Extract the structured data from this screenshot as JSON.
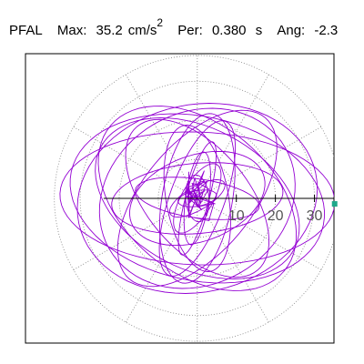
{
  "header": {
    "station": "PFAL",
    "max_label": "Max:",
    "max_value": "35.2",
    "max_unit": "cm/s",
    "max_unit_exp": "2",
    "per_label": "Per:",
    "per_value": "0.380",
    "per_unit": "s",
    "ang_label": "Ang:",
    "ang_value": "-2.3"
  },
  "colors": {
    "trace": "#9400d3",
    "marker": "#1fa88a",
    "frame": "#000000",
    "grid": "#808080"
  },
  "chart_data": {
    "type": "scatter",
    "title": "",
    "xlabel": "",
    "ylabel": "",
    "xlim": [
      -44,
      35
    ],
    "ylim": [
      -37,
      37
    ],
    "rings": [
      10,
      20,
      30
    ],
    "ring_labels": [
      "10",
      "20",
      "30"
    ],
    "grid_style": "dotted",
    "max_radius": 35.2,
    "angle_deg": -2.3,
    "orbits": [
      {
        "a": 35.2,
        "b": 17.0,
        "rot": -2
      },
      {
        "a": 33.0,
        "b": 21.0,
        "rot": -12
      },
      {
        "a": 31.0,
        "b": 24.0,
        "rot": 12
      },
      {
        "a": 28.0,
        "b": 18.0,
        "rot": -28
      },
      {
        "a": 26.0,
        "b": 22.0,
        "rot": 30
      },
      {
        "a": 27.0,
        "b": 14.0,
        "rot": 50
      },
      {
        "a": 24.0,
        "b": 13.0,
        "rot": -50
      },
      {
        "a": 22.0,
        "b": 9.0,
        "rot": 80
      },
      {
        "a": 21.0,
        "b": 7.0,
        "rot": 70
      },
      {
        "a": 19.0,
        "b": 8.0,
        "rot": 100
      },
      {
        "a": 22.0,
        "b": 9.0,
        "rot": 5
      },
      {
        "a": 16.0,
        "b": 5.0,
        "rot": -8
      },
      {
        "a": 18.0,
        "b": 11.0,
        "rot": 20
      },
      {
        "a": 15.0,
        "b": 3.0,
        "rot": 75
      },
      {
        "a": 12.0,
        "b": 3.0,
        "rot": 82
      },
      {
        "a": 10.0,
        "b": 4.0,
        "rot": 60
      },
      {
        "a": 8.0,
        "b": 3.0,
        "rot": 30
      },
      {
        "a": 6.0,
        "b": 3.0,
        "rot": 95
      },
      {
        "a": 5.0,
        "b": 2.0,
        "rot": 10
      },
      {
        "a": 29.0,
        "b": 19.0,
        "rot": -40
      }
    ],
    "center_cluster": {
      "radius": 5,
      "count": 40
    }
  }
}
